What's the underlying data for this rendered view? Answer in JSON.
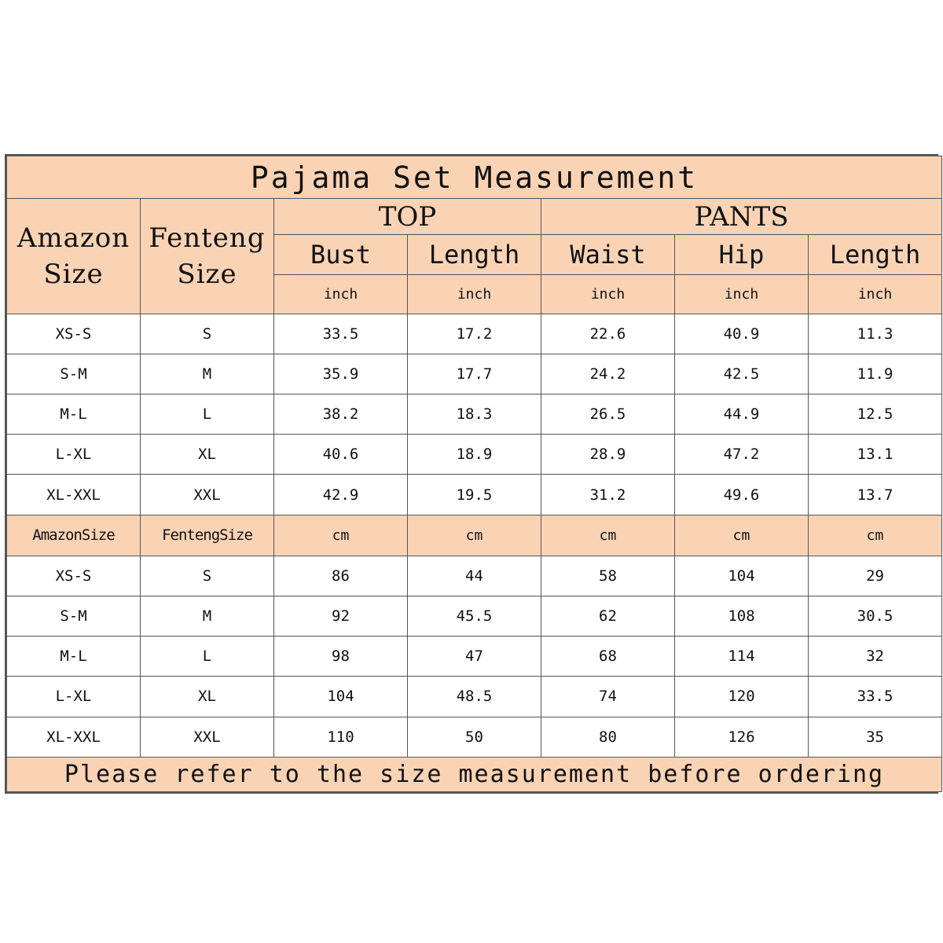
{
  "title": "Pajama Set Measurement",
  "header": {
    "amazon_size": "Amazon Size",
    "fenteng_size": "Fenteng Size",
    "top": "TOP",
    "pants": "PANTS",
    "measures": [
      "Bust",
      "Length",
      "Waist",
      "Hip",
      "Length"
    ],
    "inch_unit": "inch",
    "cm_unit": "cm",
    "amazon_size_compact": "AmazonSize",
    "fenteng_size_compact": "FentengSize"
  },
  "inch_rows": [
    [
      "XS-S",
      "S",
      "33.5",
      "17.2",
      "22.6",
      "40.9",
      "11.3"
    ],
    [
      "S-M",
      "M",
      "35.9",
      "17.7",
      "24.2",
      "42.5",
      "11.9"
    ],
    [
      "M-L",
      "L",
      "38.2",
      "18.3",
      "26.5",
      "44.9",
      "12.5"
    ],
    [
      "L-XL",
      "XL",
      "40.6",
      "18.9",
      "28.9",
      "47.2",
      "13.1"
    ],
    [
      "XL-XXL",
      "XXL",
      "42.9",
      "19.5",
      "31.2",
      "49.6",
      "13.7"
    ]
  ],
  "cm_rows": [
    [
      "XS-S",
      "S",
      "86",
      "44",
      "58",
      "104",
      "29"
    ],
    [
      "S-M",
      "M",
      "92",
      "45.5",
      "62",
      "108",
      "30.5"
    ],
    [
      "M-L",
      "L",
      "98",
      "47",
      "68",
      "114",
      "32"
    ],
    [
      "L-XL",
      "XL",
      "104",
      "48.5",
      "74",
      "120",
      "33.5"
    ],
    [
      "XL-XXL",
      "XXL",
      "110",
      "50",
      "80",
      "126",
      "35"
    ]
  ],
  "footer": "Please refer to the size measurement before ordering",
  "colors": {
    "header_bg": "#fad3b5",
    "border": "#555555",
    "body_bg": "#ffffff"
  }
}
